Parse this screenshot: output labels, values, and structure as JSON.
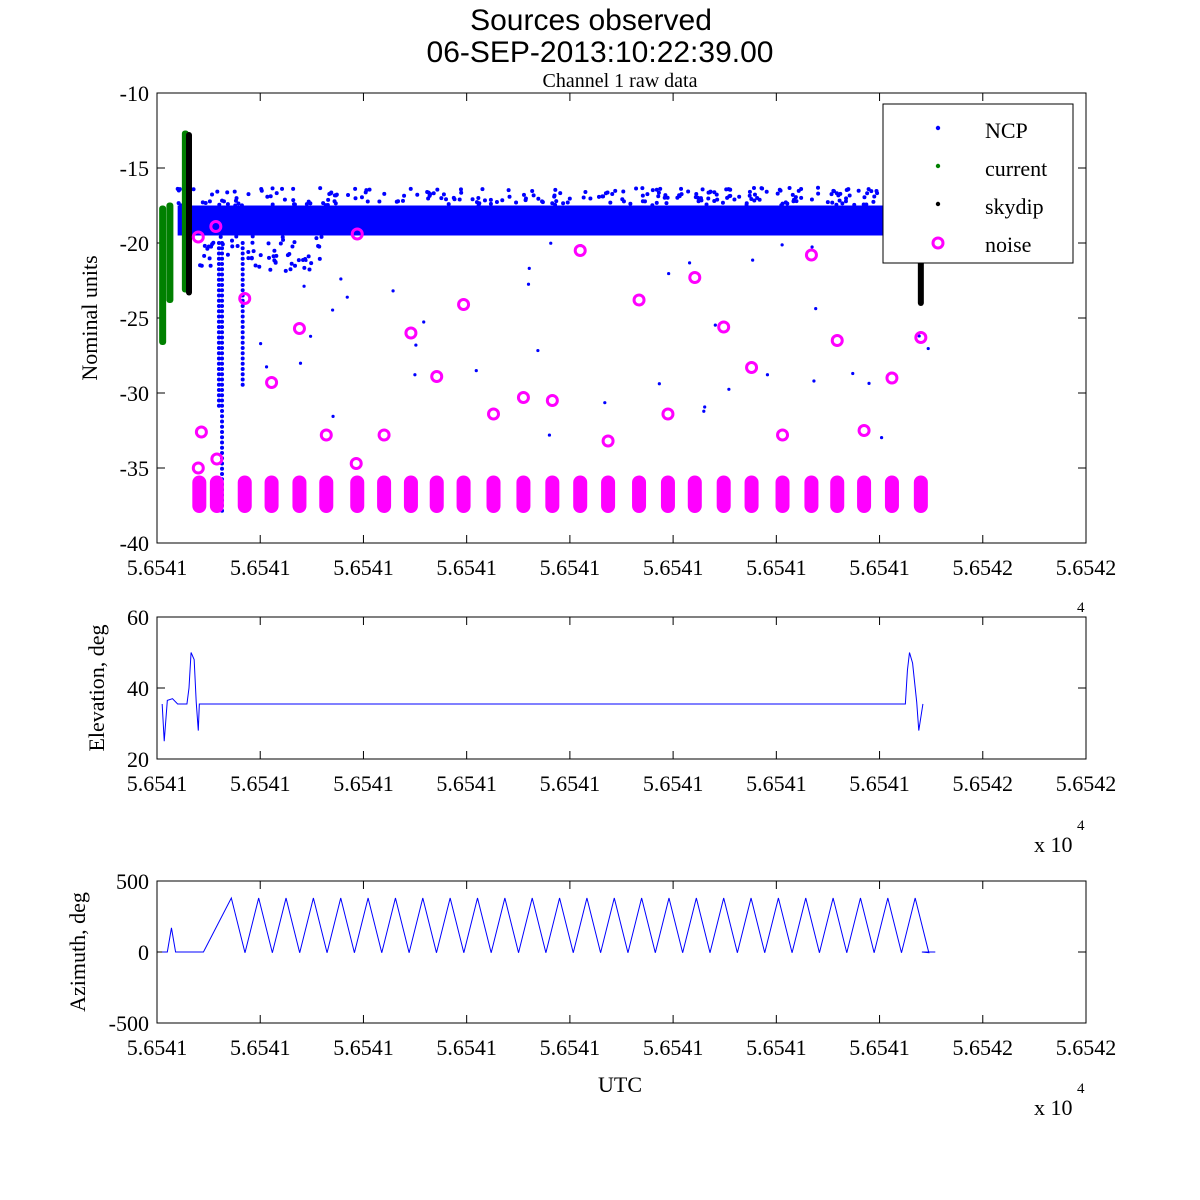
{
  "title_line1": "Sources observed",
  "title_line2": "06-SEP-2013:10:22:39.00",
  "chart_data": [
    {
      "type": "scatter",
      "title": "Channel 1 raw data",
      "xlabel": "",
      "ylabel": "Nominal units",
      "ylim": [
        -40,
        -10
      ],
      "yticks": [
        "-10",
        "-15",
        "-20",
        "-25",
        "-30",
        "-35",
        "-40"
      ],
      "xlim_tick_units": [
        0,
        9
      ],
      "xtick_labels": [
        "5.6541",
        "5.6541",
        "5.6541",
        "5.6541",
        "5.6541",
        "5.6541",
        "5.6541",
        "5.6541",
        "5.6542",
        "5.6542"
      ],
      "legend_position": "top-right",
      "legend": [
        "NCP",
        "current",
        "skydip",
        "noise"
      ],
      "colors": {
        "NCP": "#0000ff",
        "current": "#008000",
        "skydip": "#000000",
        "noise": "#ff00ff"
      },
      "ncp_band": {
        "x_range": [
          0.2,
          7.54
        ],
        "y_range": [
          -19.5,
          -17.5
        ]
      },
      "current_segments": [
        [
          0.05,
          -26.8,
          -17.5
        ],
        [
          0.12,
          -24,
          -17.3
        ],
        [
          0.27,
          -23.3,
          -12.5
        ]
      ],
      "skydip_segments": [
        [
          0.31,
          -23.5,
          -12.6
        ],
        [
          7.4,
          -24.2,
          -19.5
        ]
      ],
      "noise_points": [
        [
          0.4,
          -19.6
        ],
        [
          0.43,
          -32.6
        ],
        [
          0.4,
          -35
        ],
        [
          0.57,
          -18.9
        ],
        [
          0.58,
          -34.4
        ],
        [
          0.85,
          -23.7
        ],
        [
          1.11,
          -29.3
        ],
        [
          1.38,
          -25.7
        ],
        [
          1.64,
          -32.8
        ],
        [
          1.94,
          -19.4
        ],
        [
          1.93,
          -34.7
        ],
        [
          2.2,
          -32.8
        ],
        [
          2.46,
          -26
        ],
        [
          2.71,
          -28.9
        ],
        [
          2.97,
          -24.1
        ],
        [
          3.26,
          -31.4
        ],
        [
          3.55,
          -30.3
        ],
        [
          3.83,
          -30.5
        ],
        [
          4.1,
          -20.5
        ],
        [
          4.37,
          -33.2
        ],
        [
          4.67,
          -23.8
        ],
        [
          4.95,
          -31.4
        ],
        [
          5.21,
          -22.3
        ],
        [
          5.49,
          -25.6
        ],
        [
          5.76,
          -28.3
        ],
        [
          6.06,
          -32.8
        ],
        [
          6.34,
          -20.8
        ],
        [
          6.59,
          -26.5
        ],
        [
          6.85,
          -32.5
        ],
        [
          7.12,
          -29
        ],
        [
          7.4,
          -26.3
        ]
      ],
      "noise_clusters_x": [
        0.41,
        0.58,
        0.85,
        1.11,
        1.38,
        1.64,
        1.94,
        2.2,
        2.46,
        2.71,
        2.97,
        3.26,
        3.55,
        3.83,
        4.1,
        4.37,
        4.67,
        4.95,
        5.21,
        5.49,
        5.76,
        6.06,
        6.34,
        6.59,
        6.85,
        7.12,
        7.4
      ],
      "noise_cluster_y": [
        -38,
        -35.5
      ]
    },
    {
      "type": "line",
      "ylabel": "Elevation, deg",
      "ylim": [
        20,
        60
      ],
      "yticks": [
        "60",
        "40",
        "20"
      ],
      "xtick_labels": [
        "5.6541",
        "5.6541",
        "5.6541",
        "5.6541",
        "5.6541",
        "5.6541",
        "5.6541",
        "5.6541",
        "5.6542",
        "5.6542"
      ],
      "x_multiplier": "x 10",
      "x_multiplier_exp": "4",
      "points": [
        [
          0.05,
          35.5
        ],
        [
          0.07,
          25
        ],
        [
          0.1,
          36.5
        ],
        [
          0.15,
          37
        ],
        [
          0.2,
          35.5
        ],
        [
          0.29,
          35.5
        ],
        [
          0.31,
          40
        ],
        [
          0.33,
          50
        ],
        [
          0.36,
          48
        ],
        [
          0.38,
          36
        ],
        [
          0.4,
          28
        ],
        [
          0.41,
          35.5
        ],
        [
          7.25,
          35.5
        ],
        [
          7.27,
          45
        ],
        [
          7.29,
          50
        ],
        [
          7.32,
          47
        ],
        [
          7.36,
          36
        ],
        [
          7.38,
          28
        ],
        [
          7.42,
          35.5
        ]
      ]
    },
    {
      "type": "line",
      "xlabel": "UTC",
      "ylabel": "Azimuth, deg",
      "ylim": [
        -500,
        500
      ],
      "yticks": [
        "500",
        "0",
        "-500"
      ],
      "xtick_labels": [
        "5.6541",
        "5.6541",
        "5.6541",
        "5.6541",
        "5.6541",
        "5.6541",
        "5.6541",
        "5.6541",
        "5.6542",
        "5.6542"
      ],
      "x_multiplier": "x 10",
      "x_multiplier_exp": "4",
      "scan": {
        "start": [
          [
            0.05,
            0
          ],
          [
            0.1,
            0
          ],
          [
            0.14,
            170
          ],
          [
            0.18,
            0
          ],
          [
            0.45,
            0
          ]
        ],
        "first_peak": 0.72,
        "period": 0.265,
        "peaks": 26,
        "peak": 380,
        "trough": -5,
        "end": [
          [
            7.41,
            0
          ],
          [
            7.54,
            0
          ]
        ]
      }
    }
  ]
}
